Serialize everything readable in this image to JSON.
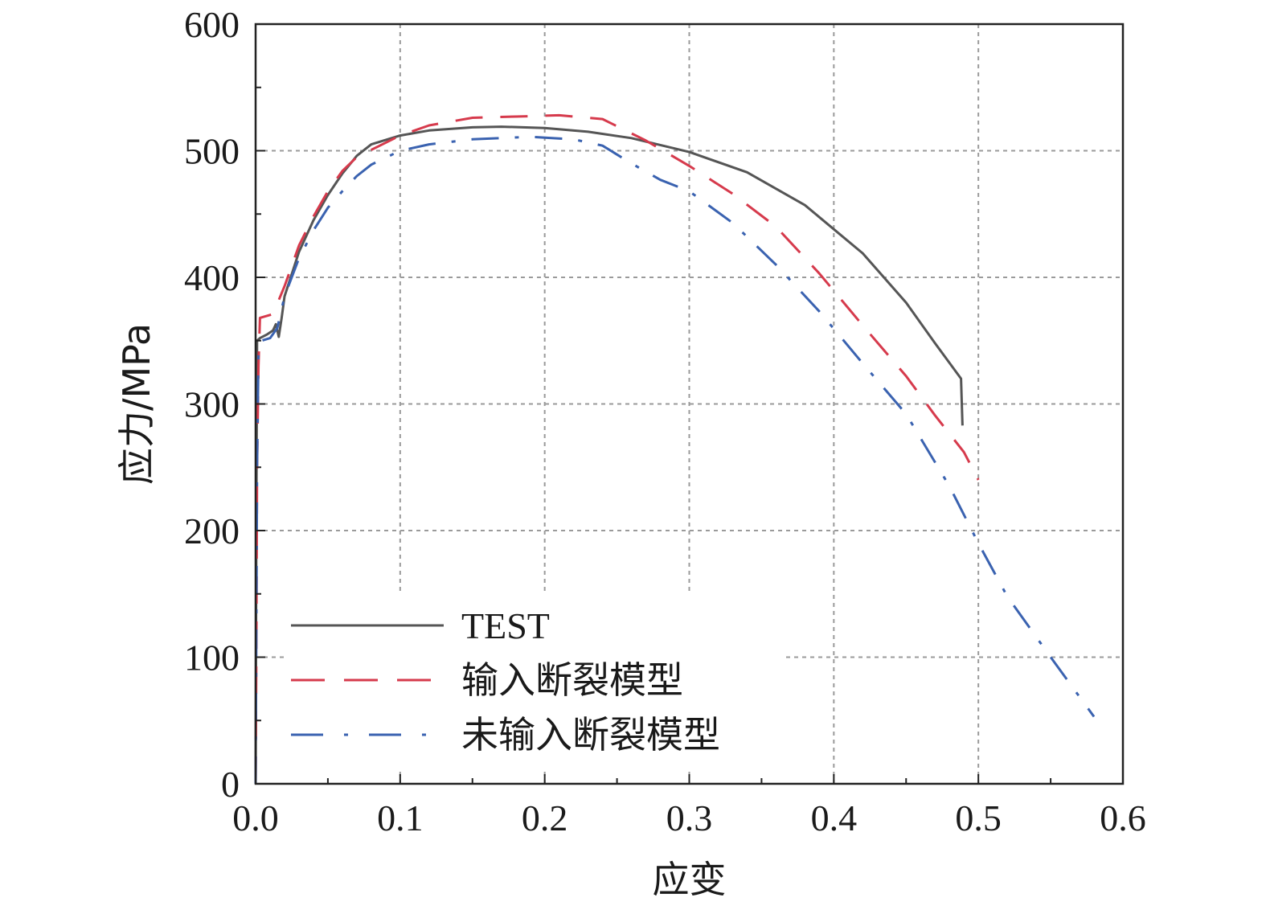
{
  "chart_data": {
    "type": "line",
    "xlabel": "应变",
    "ylabel": "应力/MPa",
    "xlim": [
      0,
      0.6
    ],
    "ylim": [
      0,
      600
    ],
    "x_ticks": [
      "0.0",
      "0.1",
      "0.2",
      "0.3",
      "0.4",
      "0.5",
      "0.6"
    ],
    "y_ticks": [
      "0",
      "100",
      "200",
      "300",
      "400",
      "500",
      "600"
    ],
    "grid": true,
    "legend_position": "bottom-left",
    "series": [
      {
        "name": "TEST",
        "color": "#555555",
        "style": "solid",
        "points": [
          [
            0,
            0
          ],
          [
            0.0005,
            200
          ],
          [
            0.001,
            350
          ],
          [
            0.003,
            352
          ],
          [
            0.008,
            355
          ],
          [
            0.012,
            358
          ],
          [
            0.014,
            363
          ],
          [
            0.016,
            353
          ],
          [
            0.018,
            368
          ],
          [
            0.02,
            385
          ],
          [
            0.03,
            420
          ],
          [
            0.04,
            445
          ],
          [
            0.05,
            465
          ],
          [
            0.06,
            482
          ],
          [
            0.07,
            496
          ],
          [
            0.08,
            505
          ],
          [
            0.1,
            512
          ],
          [
            0.12,
            516
          ],
          [
            0.15,
            518.5
          ],
          [
            0.17,
            519
          ],
          [
            0.2,
            518
          ],
          [
            0.23,
            515
          ],
          [
            0.26,
            510
          ],
          [
            0.3,
            499
          ],
          [
            0.34,
            483
          ],
          [
            0.38,
            457
          ],
          [
            0.42,
            419
          ],
          [
            0.45,
            380
          ],
          [
            0.47,
            348
          ],
          [
            0.488,
            320
          ],
          [
            0.489,
            283
          ]
        ]
      },
      {
        "name": "输入断裂模型",
        "color": "#d63a4c",
        "style": "dashed",
        "points": [
          [
            0,
            0
          ],
          [
            0.0005,
            100
          ],
          [
            0.001,
            250
          ],
          [
            0.002,
            330
          ],
          [
            0.003,
            368
          ],
          [
            0.012,
            371
          ],
          [
            0.02,
            393
          ],
          [
            0.03,
            425
          ],
          [
            0.04,
            448
          ],
          [
            0.05,
            468
          ],
          [
            0.06,
            484
          ],
          [
            0.07,
            495
          ],
          [
            0.1,
            512
          ],
          [
            0.12,
            520
          ],
          [
            0.15,
            526
          ],
          [
            0.18,
            527
          ],
          [
            0.21,
            528
          ],
          [
            0.24,
            525
          ],
          [
            0.27,
            508
          ],
          [
            0.3,
            488
          ],
          [
            0.33,
            466
          ],
          [
            0.36,
            440
          ],
          [
            0.39,
            403
          ],
          [
            0.42,
            362
          ],
          [
            0.45,
            322
          ],
          [
            0.47,
            291
          ],
          [
            0.49,
            262
          ],
          [
            0.5,
            240
          ]
        ]
      },
      {
        "name": "未输入断裂模型",
        "color": "#3a62b0",
        "style": "dashdot",
        "points": [
          [
            0,
            0
          ],
          [
            0.0005,
            120
          ],
          [
            0.001,
            250
          ],
          [
            0.002,
            340
          ],
          [
            0.004,
            350
          ],
          [
            0.01,
            352
          ],
          [
            0.015,
            360
          ],
          [
            0.02,
            385
          ],
          [
            0.03,
            415
          ],
          [
            0.04,
            437
          ],
          [
            0.05,
            455
          ],
          [
            0.06,
            468
          ],
          [
            0.07,
            480
          ],
          [
            0.08,
            489
          ],
          [
            0.1,
            500
          ],
          [
            0.12,
            505
          ],
          [
            0.15,
            509
          ],
          [
            0.19,
            511
          ],
          [
            0.22,
            509
          ],
          [
            0.24,
            504
          ],
          [
            0.26,
            490
          ],
          [
            0.28,
            477
          ],
          [
            0.3,
            468
          ],
          [
            0.33,
            443
          ],
          [
            0.36,
            410
          ],
          [
            0.39,
            373
          ],
          [
            0.42,
            332
          ],
          [
            0.45,
            292
          ],
          [
            0.48,
            235
          ],
          [
            0.5,
            190
          ],
          [
            0.52,
            148
          ],
          [
            0.55,
            100
          ],
          [
            0.58,
            53
          ]
        ]
      }
    ]
  }
}
